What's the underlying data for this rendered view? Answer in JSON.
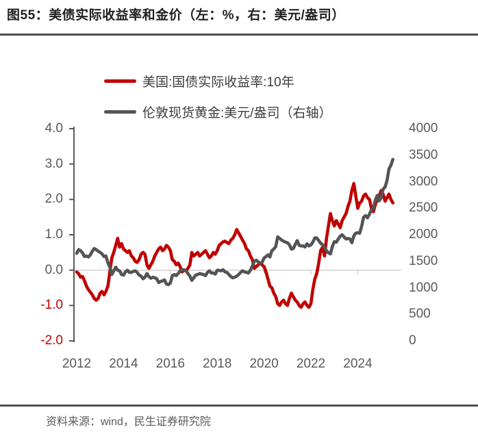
{
  "header": {
    "title": "图55：美债实际收益率和金价（左：%，右：美元/盎司）"
  },
  "source": {
    "text": "资料来源：wind，民生证券研究院"
  },
  "chart_data": {
    "type": "line",
    "title": "美债实际收益率和金价（左：%，右：美元/盎司）",
    "legend_position": "top",
    "grid": "zero-line-only",
    "colors": {
      "real_yield_line": "#c00000",
      "gold_line": "#545454",
      "axis": "#595959",
      "zero_line": "#cfcfcf",
      "negative_tick": "#c00000"
    },
    "left_axis": {
      "label": "%",
      "range": [
        -2.0,
        4.0
      ],
      "ticks": [
        4.0,
        3.0,
        2.0,
        1.0,
        0.0,
        -1.0,
        -2.0
      ],
      "tick_labels": [
        "4.0",
        "3.0",
        "2.0",
        "1.0",
        "0.0",
        "-1.0",
        "-2.0"
      ]
    },
    "right_axis": {
      "label": "美元/盎司",
      "range": [
        0,
        4000
      ],
      "ticks": [
        4000,
        3500,
        3000,
        2500,
        2000,
        1500,
        1000,
        500,
        0
      ],
      "tick_labels": [
        "4000",
        "3500",
        "3000",
        "2500",
        "2000",
        "1500",
        "1000",
        "500",
        "0"
      ]
    },
    "x_axis": {
      "range": [
        2012,
        2025.58
      ],
      "ticks": [
        2012,
        2014,
        2016,
        2018,
        2020,
        2022,
        2024
      ],
      "tick_labels": [
        "2012",
        "2014",
        "2016",
        "2018",
        "2020",
        "2022",
        "2024"
      ]
    },
    "series": [
      {
        "name": "美国:国债实际收益率:10年",
        "axis": "left",
        "color": "#c00000",
        "x_start": 2012.0,
        "x_step": 0.08333,
        "values": [
          -0.05,
          -0.1,
          -0.2,
          -0.18,
          -0.3,
          -0.45,
          -0.55,
          -0.62,
          -0.7,
          -0.8,
          -0.85,
          -0.8,
          -0.65,
          -0.6,
          -0.7,
          -0.6,
          -0.45,
          -0.05,
          0.35,
          0.5,
          0.7,
          0.9,
          0.65,
          0.75,
          0.6,
          0.55,
          0.5,
          0.55,
          0.4,
          0.35,
          0.25,
          0.22,
          0.3,
          0.45,
          0.5,
          0.45,
          0.15,
          0.05,
          0.15,
          0.25,
          0.4,
          0.5,
          0.6,
          0.65,
          0.55,
          0.6,
          0.7,
          0.65,
          0.55,
          0.3,
          0.25,
          0.15,
          0.2,
          0.1,
          -0.05,
          0.0,
          -0.02,
          0.05,
          0.15,
          0.5,
          0.4,
          0.45,
          0.5,
          0.4,
          0.45,
          0.5,
          0.55,
          0.45,
          0.35,
          0.4,
          0.5,
          0.45,
          0.55,
          0.7,
          0.75,
          0.8,
          0.82,
          0.78,
          0.75,
          0.85,
          0.9,
          1.0,
          1.15,
          1.05,
          0.95,
          0.85,
          0.75,
          0.6,
          0.55,
          0.4,
          0.3,
          0.05,
          0.1,
          0.15,
          0.2,
          0.15,
          0.1,
          -0.05,
          -0.25,
          -0.45,
          -0.5,
          -0.65,
          -0.75,
          -0.95,
          -1.0,
          -0.9,
          -0.85,
          -0.95,
          -1.0,
          -0.8,
          -0.65,
          -0.75,
          -0.85,
          -0.9,
          -1.0,
          -1.05,
          -0.95,
          -0.9,
          -1.0,
          -1.05,
          -0.95,
          -0.55,
          -0.25,
          -0.1,
          0.2,
          0.55,
          0.65,
          0.4,
          0.9,
          1.25,
          1.6,
          1.4,
          1.25,
          1.4,
          1.3,
          1.2,
          1.4,
          1.5,
          1.6,
          1.8,
          1.95,
          2.25,
          2.45,
          2.1,
          1.75,
          1.9,
          1.95,
          2.1,
          2.15,
          2.05,
          2.0,
          1.75,
          1.65,
          1.85,
          2.0,
          2.1,
          2.25,
          2.15,
          1.95,
          2.05,
          2.15,
          2.0,
          1.9
        ]
      },
      {
        "name": "伦敦现货黄金:美元/盎司（右轴）",
        "axis": "right",
        "color": "#545454",
        "x_start": 2012.0,
        "x_step": 0.08333,
        "values": [
          1650,
          1720,
          1700,
          1660,
          1590,
          1600,
          1580,
          1620,
          1690,
          1740,
          1720,
          1690,
          1670,
          1640,
          1590,
          1600,
          1470,
          1390,
          1250,
          1320,
          1390,
          1330,
          1320,
          1250,
          1240,
          1300,
          1330,
          1290,
          1290,
          1310,
          1320,
          1290,
          1240,
          1220,
          1170,
          1200,
          1270,
          1210,
          1180,
          1200,
          1190,
          1170,
          1100,
          1120,
          1130,
          1150,
          1070,
          1060,
          1090,
          1230,
          1250,
          1230,
          1270,
          1320,
          1340,
          1340,
          1320,
          1270,
          1220,
          1140,
          1190,
          1240,
          1250,
          1270,
          1260,
          1250,
          1230,
          1290,
          1320,
          1280,
          1280,
          1260,
          1330,
          1330,
          1320,
          1340,
          1300,
          1290,
          1250,
          1210,
          1190,
          1200,
          1220,
          1250,
          1290,
          1320,
          1300,
          1290,
          1280,
          1330,
          1410,
          1500,
          1520,
          1490,
          1460,
          1480,
          1560,
          1590,
          1620,
          1580,
          1700,
          1730,
          1780,
          1960,
          1930,
          1900,
          1880,
          1860,
          1850,
          1810,
          1730,
          1740,
          1820,
          1890,
          1800,
          1790,
          1790,
          1770,
          1830,
          1790,
          1810,
          1860,
          1940,
          1940,
          1890,
          1840,
          1810,
          1760,
          1700,
          1660,
          1640,
          1780,
          1870,
          1860,
          1920,
          1970,
          2000,
          1960,
          1920,
          1930,
          1920,
          1850,
          1980,
          2030,
          2040,
          2030,
          2160,
          2330,
          2360,
          2320,
          2390,
          2470,
          2500,
          2650,
          2740,
          2640,
          2700,
          2860,
          2900,
          3020,
          3240,
          3310,
          3420
        ]
      }
    ]
  }
}
